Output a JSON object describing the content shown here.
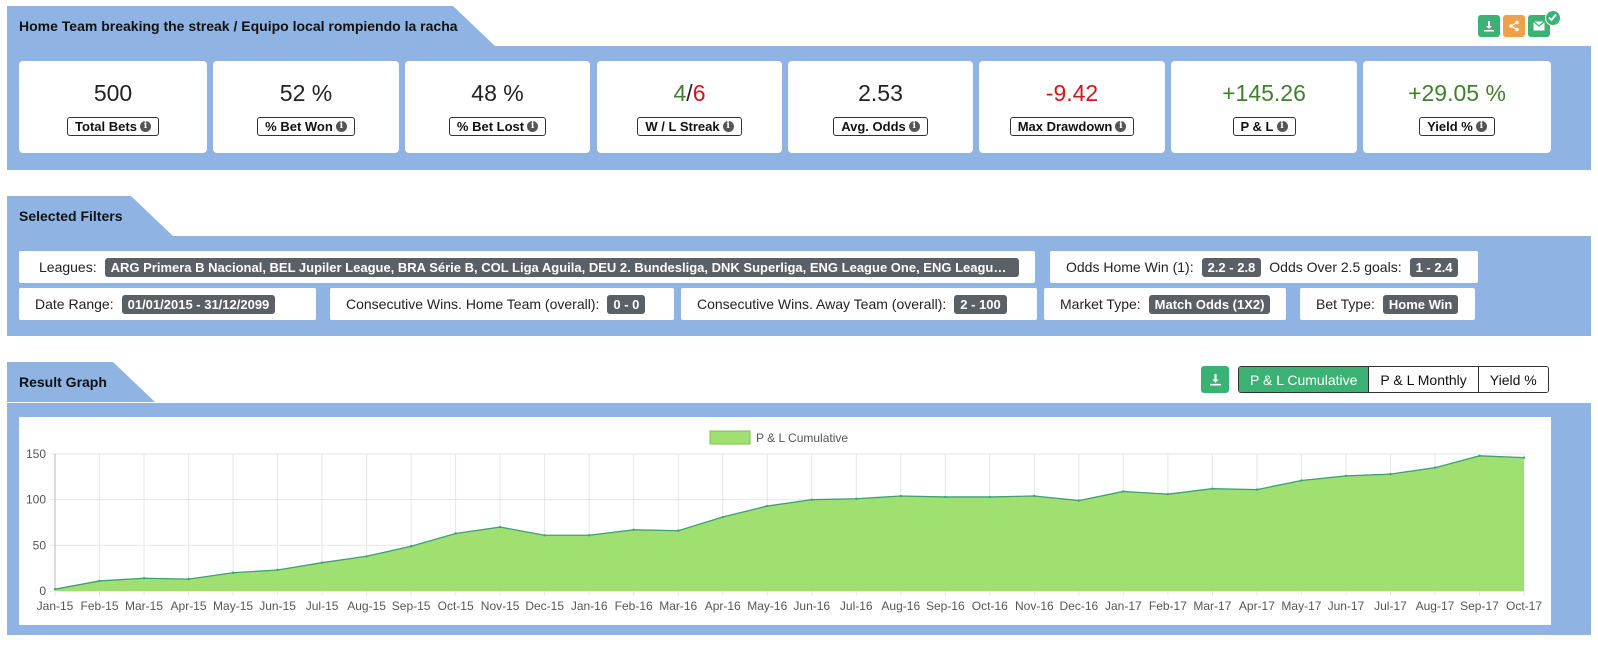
{
  "header": {
    "title": "Home Team breaking the streak / Equipo local rompiendo la racha",
    "actions": [
      {
        "icon": "download-icon",
        "color": "#3bb273"
      },
      {
        "icon": "share-icon",
        "color": "#f0a04b"
      },
      {
        "icon": "email-icon",
        "color": "#3bb273"
      }
    ]
  },
  "stats": [
    {
      "value": "500",
      "label": "Total Bets"
    },
    {
      "value": "52 %",
      "label": "% Bet Won"
    },
    {
      "value": "48 %",
      "label": "% Bet Lost"
    },
    {
      "value_w": "4",
      "value_sep": "/",
      "value_l": "6",
      "label": "W / L Streak"
    },
    {
      "value": "2.53",
      "label": "Avg. Odds"
    },
    {
      "value": "-9.42",
      "label": "Max Drawdown"
    },
    {
      "value": "+145.26",
      "label": "P & L"
    },
    {
      "value": "+29.05 %",
      "label": "Yield %"
    }
  ],
  "filters": {
    "title": "Selected Filters",
    "leagues_label": "Leagues:",
    "leagues_value": "ARG Primera B Nacional, BEL Jupiler League, BRA Série B, COL Liga Aguila, DEU 2. Bundesliga, DNK Superliga, ENG League One, ENG League Two ...",
    "odds_home_label": "Odds Home Win (1):",
    "odds_home_value": "2.2 - 2.8",
    "odds_over_label": "Odds Over 2.5 goals:",
    "odds_over_value": "1 - 2.4",
    "date_label": "Date Range:",
    "date_value": "01/01/2015 - 31/12/2099",
    "cons_home_label": "Consecutive Wins. Home Team (overall):",
    "cons_home_value": "0 - 0",
    "cons_away_label": "Consecutive Wins. Away Team (overall):",
    "cons_away_value": "2 - 100",
    "market_label": "Market Type:",
    "market_value": "Match Odds (1X2)",
    "bettype_label": "Bet Type:",
    "bettype_value": "Home Win"
  },
  "graph": {
    "title": "Result Graph",
    "buttons": [
      "P & L Cumulative",
      "P & L Monthly",
      "Yield %"
    ],
    "active": "P & L Cumulative"
  },
  "colors": {
    "panel": "#8fb4e3",
    "green_button": "#3bb273",
    "area_fill": "#a0e070",
    "area_line": "#3da07a",
    "positive": "#3f7f2e",
    "negative": "#d0161b"
  },
  "chart_data": {
    "type": "area",
    "legend": "P & L Cumulative",
    "legend_position": "top-center",
    "grid": true,
    "ylim": [
      0,
      150
    ],
    "yticks": [
      0,
      50,
      100,
      150
    ],
    "x": [
      "Jan-15",
      "Feb-15",
      "Mar-15",
      "Apr-15",
      "May-15",
      "Jun-15",
      "Jul-15",
      "Aug-15",
      "Sep-15",
      "Oct-15",
      "Nov-15",
      "Dec-15",
      "Jan-16",
      "Feb-16",
      "Mar-16",
      "Apr-16",
      "May-16",
      "Jun-16",
      "Jul-16",
      "Aug-16",
      "Sep-16",
      "Oct-16",
      "Nov-16",
      "Dec-16",
      "Jan-17",
      "Feb-17",
      "Mar-17",
      "Apr-17",
      "May-17",
      "Jun-17",
      "Jul-17",
      "Aug-17",
      "Sep-17",
      "Oct-17"
    ],
    "series": [
      {
        "name": "P & L Cumulative",
        "values": [
          2,
          11,
          14,
          13,
          20,
          23,
          31,
          38,
          49,
          63,
          70,
          61,
          61,
          67,
          66,
          81,
          93,
          100,
          101,
          104,
          103,
          103,
          104,
          99,
          109,
          106,
          112,
          111,
          121,
          126,
          128,
          135,
          148,
          146
        ]
      }
    ]
  }
}
